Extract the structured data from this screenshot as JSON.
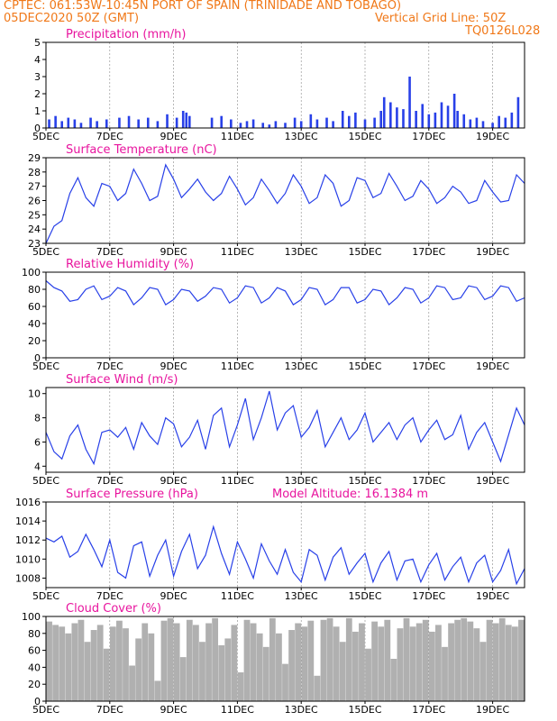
{
  "header": {
    "line1": "CPTEC:   061:53W-10:45N   PORT OF SPAIN (TRINIDADE AND TOBAGO)",
    "line2_left": "05DEC2020 50Z (GMT)",
    "line2_right": "Vertical Grid Line: 50Z",
    "line3_right": "TQ0126L028"
  },
  "x_ticks": [
    "5DEC",
    "7DEC",
    "9DEC",
    "11DEC",
    "13DEC",
    "15DEC",
    "17DEC",
    "19DEC"
  ],
  "colors": {
    "header": "#f07818",
    "title": "#e8149e",
    "line": "#2840e8",
    "bar": "#2840e8",
    "cloud": "#b0b0b0"
  },
  "chart_data": [
    {
      "type": "bar",
      "title": "Precipitation (mm/h)",
      "ylim": [
        0,
        5
      ],
      "yticks": [
        0,
        1,
        2,
        3,
        4,
        5
      ],
      "x_range_days": [
        0,
        15
      ],
      "x": [
        0.1,
        0.3,
        0.5,
        0.7,
        0.9,
        1.1,
        1.4,
        1.6,
        1.9,
        2.3,
        2.6,
        2.9,
        3.2,
        3.5,
        3.8,
        4.1,
        4.3,
        4.4,
        4.5,
        5.2,
        5.5,
        5.8,
        6.1,
        6.3,
        6.5,
        6.8,
        7.0,
        7.2,
        7.5,
        7.8,
        8.0,
        8.3,
        8.5,
        8.8,
        9.0,
        9.3,
        9.5,
        9.7,
        10.0,
        10.3,
        10.5,
        10.6,
        10.8,
        11.0,
        11.2,
        11.4,
        11.6,
        11.8,
        12.0,
        12.2,
        12.4,
        12.6,
        12.8,
        12.9,
        13.1,
        13.3,
        13.5,
        13.7,
        14.0,
        14.2,
        14.4,
        14.6,
        14.8
      ],
      "values": [
        0.5,
        0.7,
        0.4,
        0.6,
        0.5,
        0.3,
        0.6,
        0.4,
        0.5,
        0.6,
        0.7,
        0.5,
        0.6,
        0.4,
        0.8,
        0.6,
        1.0,
        0.9,
        0.7,
        0.6,
        0.7,
        0.5,
        0.3,
        0.4,
        0.5,
        0.3,
        0.2,
        0.4,
        0.3,
        0.6,
        0.4,
        0.8,
        0.5,
        0.6,
        0.4,
        1.0,
        0.7,
        0.9,
        0.5,
        0.6,
        1.0,
        1.8,
        1.5,
        1.2,
        1.1,
        3.0,
        1.0,
        1.4,
        0.8,
        0.9,
        1.5,
        1.3,
        2.0,
        1.0,
        0.8,
        0.5,
        0.6,
        0.4,
        0.3,
        0.7,
        0.6,
        0.9,
        1.8
      ]
    },
    {
      "type": "line",
      "title": "Surface Temperature (nC)",
      "ylim": [
        23,
        29
      ],
      "yticks": [
        23,
        24,
        25,
        26,
        27,
        28,
        29
      ],
      "x_range_days": [
        0,
        15
      ],
      "x": [
        0,
        0.25,
        0.5,
        0.75,
        1.0,
        1.25,
        1.5,
        1.75,
        2.0,
        2.25,
        2.5,
        2.75,
        3.0,
        3.25,
        3.5,
        3.75,
        4.0,
        4.25,
        4.5,
        4.75,
        5.0,
        5.25,
        5.5,
        5.75,
        6.0,
        6.25,
        6.5,
        6.75,
        7.0,
        7.25,
        7.5,
        7.75,
        8.0,
        8.25,
        8.5,
        8.75,
        9.0,
        9.25,
        9.5,
        9.75,
        10.0,
        10.25,
        10.5,
        10.75,
        11.0,
        11.25,
        11.5,
        11.75,
        12.0,
        12.25,
        12.5,
        12.75,
        13.0,
        13.25,
        13.5,
        13.75,
        14.0,
        14.25,
        14.5,
        14.75,
        15.0
      ],
      "values": [
        23.0,
        24.2,
        24.6,
        26.5,
        27.6,
        26.2,
        25.6,
        27.2,
        27.0,
        26.0,
        26.5,
        28.2,
        27.2,
        26.0,
        26.3,
        28.5,
        27.5,
        26.2,
        26.8,
        27.5,
        26.6,
        26.0,
        26.5,
        27.7,
        26.8,
        25.7,
        26.2,
        27.5,
        26.7,
        25.8,
        26.5,
        27.8,
        27.0,
        25.8,
        26.2,
        27.8,
        27.2,
        25.6,
        26.0,
        27.6,
        27.4,
        26.2,
        26.5,
        27.9,
        27.0,
        26.0,
        26.3,
        27.4,
        26.8,
        25.8,
        26.2,
        27.0,
        26.6,
        25.8,
        26.0,
        27.4,
        26.6,
        25.9,
        26.0,
        27.8,
        27.2
      ]
    },
    {
      "type": "line",
      "title": "Relative Humidity (%)",
      "ylim": [
        0,
        100
      ],
      "yticks": [
        0,
        20,
        40,
        60,
        80,
        100
      ],
      "x_range_days": [
        0,
        15
      ],
      "x": [
        0,
        0.25,
        0.5,
        0.75,
        1.0,
        1.25,
        1.5,
        1.75,
        2.0,
        2.25,
        2.5,
        2.75,
        3.0,
        3.25,
        3.5,
        3.75,
        4.0,
        4.25,
        4.5,
        4.75,
        5.0,
        5.25,
        5.5,
        5.75,
        6.0,
        6.25,
        6.5,
        6.75,
        7.0,
        7.25,
        7.5,
        7.75,
        8.0,
        8.25,
        8.5,
        8.75,
        9.0,
        9.25,
        9.5,
        9.75,
        10.0,
        10.25,
        10.5,
        10.75,
        11.0,
        11.25,
        11.5,
        11.75,
        12.0,
        12.25,
        12.5,
        12.75,
        13.0,
        13.25,
        13.5,
        13.75,
        14.0,
        14.25,
        14.5,
        14.75,
        15.0
      ],
      "values": [
        90,
        82,
        78,
        66,
        68,
        80,
        84,
        68,
        72,
        82,
        78,
        62,
        70,
        82,
        80,
        62,
        68,
        80,
        78,
        66,
        72,
        82,
        80,
        64,
        70,
        84,
        82,
        64,
        70,
        82,
        78,
        62,
        68,
        82,
        80,
        62,
        68,
        82,
        82,
        64,
        68,
        80,
        78,
        62,
        70,
        82,
        80,
        64,
        70,
        84,
        82,
        68,
        70,
        84,
        82,
        68,
        72,
        84,
        82,
        66,
        70
      ]
    },
    {
      "type": "line",
      "title": "Surface Wind (m/s)",
      "ylim": [
        3.5,
        10.5
      ],
      "yticks": [
        4,
        6,
        8,
        10
      ],
      "x_range_days": [
        0,
        15
      ],
      "x": [
        0,
        0.25,
        0.5,
        0.75,
        1.0,
        1.25,
        1.5,
        1.75,
        2.0,
        2.25,
        2.5,
        2.75,
        3.0,
        3.25,
        3.5,
        3.75,
        4.0,
        4.25,
        4.5,
        4.75,
        5.0,
        5.25,
        5.5,
        5.75,
        6.0,
        6.25,
        6.5,
        6.75,
        7.0,
        7.25,
        7.5,
        7.75,
        8.0,
        8.25,
        8.5,
        8.75,
        9.0,
        9.25,
        9.5,
        9.75,
        10.0,
        10.25,
        10.5,
        10.75,
        11.0,
        11.25,
        11.5,
        11.75,
        12.0,
        12.25,
        12.5,
        12.75,
        13.0,
        13.25,
        13.5,
        13.75,
        14.0,
        14.25,
        14.5,
        14.75,
        15.0
      ],
      "values": [
        6.8,
        5.2,
        4.6,
        6.5,
        7.4,
        5.4,
        4.2,
        6.8,
        7.0,
        6.4,
        7.2,
        5.4,
        7.6,
        6.5,
        5.8,
        8.0,
        7.5,
        5.6,
        6.4,
        7.8,
        5.4,
        8.2,
        8.8,
        5.6,
        7.4,
        9.6,
        6.2,
        8.0,
        10.2,
        7.0,
        8.4,
        9.0,
        6.4,
        7.2,
        8.6,
        5.6,
        6.8,
        8.0,
        6.2,
        7.0,
        8.4,
        6.0,
        6.8,
        7.6,
        6.2,
        7.4,
        8.0,
        6.0,
        7.0,
        7.8,
        6.2,
        6.6,
        8.2,
        5.4,
        6.8,
        7.6,
        6.0,
        4.4,
        6.6,
        8.8,
        7.4
      ]
    },
    {
      "type": "line",
      "title": "Surface Pressure (hPa)",
      "annotation": "Model Altitude: 16.1384 m",
      "ylim": [
        1007,
        1016
      ],
      "yticks": [
        1008,
        1010,
        1012,
        1014,
        1016
      ],
      "x_range_days": [
        0,
        15
      ],
      "x": [
        0,
        0.25,
        0.5,
        0.75,
        1.0,
        1.25,
        1.5,
        1.75,
        2.0,
        2.25,
        2.5,
        2.75,
        3.0,
        3.25,
        3.5,
        3.75,
        4.0,
        4.25,
        4.5,
        4.75,
        5.0,
        5.25,
        5.5,
        5.75,
        6.0,
        6.25,
        6.5,
        6.75,
        7.0,
        7.25,
        7.5,
        7.75,
        8.0,
        8.25,
        8.5,
        8.75,
        9.0,
        9.25,
        9.5,
        9.75,
        10.0,
        10.25,
        10.5,
        10.75,
        11.0,
        11.25,
        11.5,
        11.75,
        12.0,
        12.25,
        12.5,
        12.75,
        13.0,
        13.25,
        13.5,
        13.75,
        14.0,
        14.25,
        14.5,
        14.75,
        15.0
      ],
      "values": [
        1012.2,
        1011.8,
        1012.4,
        1010.2,
        1010.8,
        1012.6,
        1011.0,
        1009.2,
        1012.0,
        1008.6,
        1008.0,
        1011.4,
        1011.8,
        1008.2,
        1010.4,
        1012.0,
        1008.2,
        1010.8,
        1012.6,
        1009.0,
        1010.4,
        1013.4,
        1010.6,
        1008.4,
        1011.8,
        1010.0,
        1008.0,
        1011.6,
        1009.8,
        1008.4,
        1011.0,
        1008.6,
        1007.6,
        1011.0,
        1010.4,
        1007.8,
        1010.2,
        1011.2,
        1008.4,
        1009.6,
        1010.6,
        1007.6,
        1009.6,
        1010.8,
        1007.8,
        1009.8,
        1010.0,
        1007.6,
        1009.4,
        1010.6,
        1007.8,
        1009.2,
        1010.2,
        1007.6,
        1009.6,
        1010.4,
        1007.6,
        1008.8,
        1011.0,
        1007.4,
        1009.0
      ]
    },
    {
      "type": "bar",
      "title": "Cloud Cover (%)",
      "ylim": [
        0,
        100
      ],
      "yticks": [
        0,
        20,
        40,
        60,
        80,
        100
      ],
      "x_range_days": [
        0,
        15
      ],
      "x": [
        0.1,
        0.3,
        0.5,
        0.7,
        0.9,
        1.1,
        1.3,
        1.5,
        1.7,
        1.9,
        2.1,
        2.3,
        2.5,
        2.7,
        2.9,
        3.1,
        3.3,
        3.5,
        3.7,
        3.9,
        4.1,
        4.3,
        4.5,
        4.7,
        4.9,
        5.1,
        5.3,
        5.5,
        5.7,
        5.9,
        6.1,
        6.3,
        6.5,
        6.7,
        6.9,
        7.1,
        7.3,
        7.5,
        7.7,
        7.9,
        8.1,
        8.3,
        8.5,
        8.7,
        8.9,
        9.1,
        9.3,
        9.5,
        9.7,
        9.9,
        10.1,
        10.3,
        10.5,
        10.7,
        10.9,
        11.1,
        11.3,
        11.5,
        11.7,
        11.9,
        12.1,
        12.3,
        12.5,
        12.7,
        12.9,
        13.1,
        13.3,
        13.5,
        13.7,
        13.9,
        14.1,
        14.3,
        14.5,
        14.7,
        14.9
      ],
      "values": [
        94,
        90,
        88,
        80,
        92,
        96,
        70,
        84,
        90,
        62,
        88,
        95,
        86,
        42,
        74,
        92,
        80,
        24,
        95,
        98,
        92,
        52,
        96,
        90,
        70,
        92,
        98,
        66,
        74,
        90,
        34,
        96,
        92,
        80,
        64,
        98,
        80,
        44,
        84,
        92,
        88,
        95,
        30,
        96,
        98,
        88,
        70,
        98,
        82,
        92,
        62,
        94,
        88,
        96,
        50,
        86,
        98,
        88,
        92,
        96,
        82,
        90,
        64,
        92,
        96,
        98,
        94,
        86,
        70,
        96,
        92,
        98,
        90,
        88,
        96
      ]
    }
  ]
}
